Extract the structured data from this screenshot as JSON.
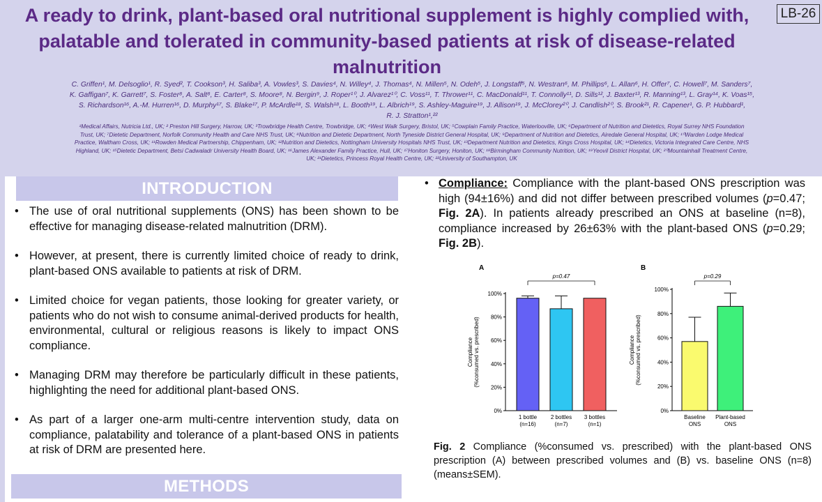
{
  "header": {
    "title_line1": "A ready to drink, plant-based oral nutritional supplement is highly complied with,",
    "title_line2": "palatable and tolerated in community-based patients at risk of disease-related",
    "title_line3": "malnutrition",
    "badge": "LB-26",
    "authors": [
      "C. Griffen¹, M. Delsoglio¹, R. Syed², T. Cookson³, H. Saliba³, A. Vowles³, S. Davies⁴, N. Willey⁴, J. Thomas⁴, N. Millen⁵, N. Odeh⁵, J. Longstaff⁵, N. Westran⁶, M. Phillips⁶, L. Allan⁶, H. Offer⁷, C. Howell⁷, M. Sanders⁷,",
      "K. Gaffigan⁷, K. Garrett⁷, S. Foster⁸, A. Salt⁸, E. Carter⁸, S. Moore⁸, N. Bergin⁹, J. Roper¹⁰, J. Alvarez¹⁰, C. Voss¹¹, T. Thrower¹¹, C. MacDonald¹¹, T. Connolly¹¹, D. Sills¹², J. Baxter¹³, R. Manning¹³, L. Gray¹⁴, K. Voas¹⁵,",
      "S. Richardson¹⁶, A.-M. Hurren¹⁶, D. Murphy¹⁷, S. Blake¹⁷, P. McArdle¹⁸, S. Walsh¹⁸, L. Booth¹⁹, L. Albrich¹⁹, S. Ashley-Maguire¹⁹, J. Allison¹⁹, J. McClorey²⁰, J. Candlish²⁰, S. Brook²¹, R. Capener¹, G. P. Hubbard¹,",
      "R. J. Stratton¹,²²"
    ],
    "affiliations": [
      "¹Medical Affairs, Nutricia Ltd., UK; ² Preston Hill Surgery, Harrow, UK; ³Trowbridge Health Centre, Trowbridge, UK; ⁴West Walk Surgery, Bristol, UK; ⁵Cowplain Family Practice, Waterlooville, UK; ⁶Department of Nutrition and Dietetics, Royal Surrey NHS Foundation",
      "Trust, UK; ⁷Dietetic Department, Norfolk Community Health and Care NHS Trust, UK; ⁸Nutrition and Dietetic Department, North Tyneside District General Hospital, UK; ⁹Department of Nutrition and Dietetics, Airedale General Hospital, UK; ¹⁰Warden Lodge Medical",
      "Practice, Waltham Cross, UK; ¹¹Rowden Medical Partnership, Chippenham, UK; ¹²Nutrition and Dietetics, Nottingham University Hospitals NHS Trust, UK; ¹³Department Nutrition and Dietetics, Kings Cross Hospital, UK; ¹⁴Dietetics, Victoria Integrated Care Centre, NHS",
      "Highland, UK; ¹⁵Dietetic Department, Betsi Cadwaladr University Health Board, UK; ¹⁶James Alexander Family Practice, Hull, UK; ¹⁷Honiton Surgery, Honiton, UK; ¹⁸Birmingham Community Nutrition, UK; ¹⁹Yeovil District Hospital, UK; ²⁰Mountainhall Treatment Centre,",
      "UK; ²¹Dietetics, Princess Royal Health Centre, UK; ²²University of Southampton, UK"
    ]
  },
  "introduction": {
    "heading": "INTRODUCTION",
    "bullets": [
      "The use of oral nutritional supplements (ONS) has been shown to be effective for managing disease-related malnutrition (DRM).",
      "However, at present, there is currently limited choice of ready to drink, plant-based ONS available to patients at risk of DRM.",
      "Limited choice for vegan patients, those looking for greater variety, or patients who do not wish to consume animal-derived products for health, environmental, cultural or religious reasons is likely to impact ONS compliance.",
      "Managing DRM may therefore be particularly difficult in these patients, highlighting the need for additional plant-based ONS.",
      "As part of a larger one-arm multi-centre intervention study, data on compliance, palatability and tolerance of a plant-based ONS in patients at risk of DRM are presented here."
    ]
  },
  "methods": {
    "heading": "METHODS"
  },
  "results": {
    "compliance_lead": "Compliance:",
    "compliance_text_1": " Compliance with the plant-based ONS prescription was high (94±16%) and did not differ between prescribed volumes (",
    "p_symbol": "p",
    "compliance_text_2": "=0.47; ",
    "fig2a": "Fig. 2A",
    "compliance_text_3": "). In patients already prescribed an ONS at baseline (n=8), compliance increased by 26±63% with the plant-based ONS (",
    "compliance_text_4": "=0.29; ",
    "fig2b": "Fig. 2B",
    "compliance_text_5": ")."
  },
  "figure_caption": {
    "label": "Fig. 2",
    "text": " Compliance (%consumed vs. prescribed) with the plant-based ONS prescription (A) between prescribed volumes and (B) vs. baseline ONS (n=8) (means±SEM)."
  },
  "chart_data": [
    {
      "type": "bar",
      "panel_label": "A",
      "categories": [
        "1 bottle\n(n=16)",
        "2 bottles\n(n=7)",
        "3 bottles\n(n=1)"
      ],
      "values": [
        96,
        87,
        96
      ],
      "errors": [
        2,
        11,
        0
      ],
      "colors": [
        "#6461f5",
        "#2ec6f2",
        "#f06060"
      ],
      "ylabel": "Compliance\n(%consumed vs. prescribed)",
      "ylim": [
        0,
        100
      ],
      "yticks": [
        "0%",
        "20%",
        "40%",
        "60%",
        "80%",
        "100%"
      ],
      "annotation": "p=0.47"
    },
    {
      "type": "bar",
      "panel_label": "B",
      "categories": [
        "Baseline\nONS",
        "Plant-based\nONS"
      ],
      "values": [
        57,
        86
      ],
      "errors": [
        20,
        11
      ],
      "colors": [
        "#fafa6e",
        "#3ef07a"
      ],
      "ylabel": "Compliance\n(%consumed vs. prescribed)",
      "ylim": [
        0,
        100
      ],
      "yticks": [
        "0%",
        "20%",
        "40%",
        "60%",
        "80%",
        "100%"
      ],
      "annotation": "p=0.29"
    }
  ]
}
